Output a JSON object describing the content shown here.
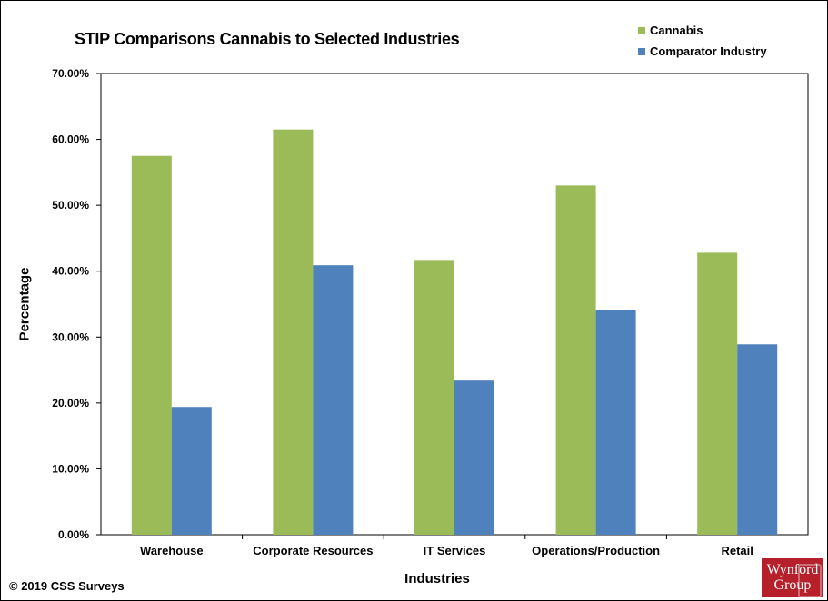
{
  "chart_data": {
    "type": "bar",
    "title": "STIP Comparisons Cannabis to Selected Industries",
    "xlabel": "Industries",
    "ylabel": "Percentage",
    "categories": [
      "Warehouse",
      "Corporate Resources",
      "IT Services",
      "Operations/Production",
      "Retail"
    ],
    "series": [
      {
        "name": "Cannabis",
        "color": "#9bbb59",
        "values": [
          57.5,
          61.5,
          41.7,
          53.0,
          42.8
        ]
      },
      {
        "name": "Comparator Industry",
        "color": "#4f81bd",
        "values": [
          19.4,
          40.9,
          23.4,
          34.1,
          28.9
        ]
      }
    ],
    "ylim": [
      0,
      70
    ],
    "yticks": [
      "0.00%",
      "10.00%",
      "20.00%",
      "30.00%",
      "40.00%",
      "50.00%",
      "60.00%",
      "70.00%"
    ],
    "grid": false,
    "legend_position": "top-right"
  },
  "footer": {
    "copyright": "© 2019 CSS Surveys",
    "logo_line1": "Wynford",
    "logo_line2": "Group"
  }
}
